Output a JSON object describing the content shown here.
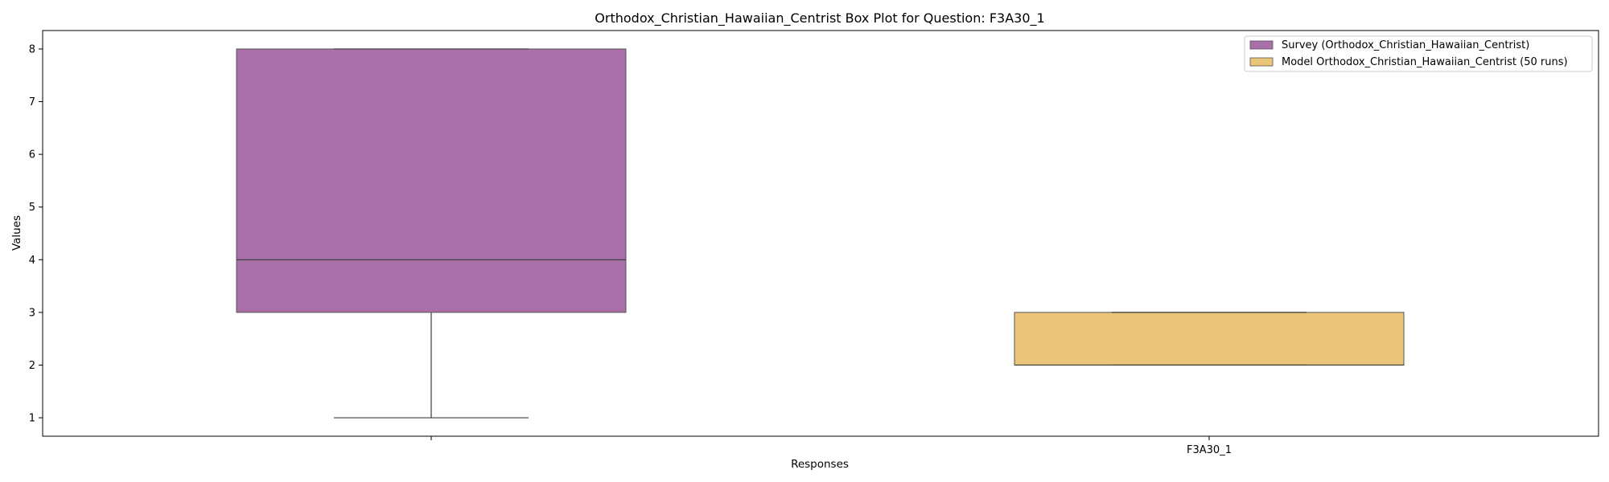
{
  "chart_data": {
    "type": "box",
    "title": "Orthodox_Christian_Hawaiian_Centrist Box Plot for Question: F3A30_1",
    "xlabel": "Responses",
    "ylabel": "Values",
    "ylim": [
      0.65,
      8.35
    ],
    "yticks": [
      1,
      2,
      3,
      4,
      5,
      6,
      7,
      8
    ],
    "xtick_labels": [
      "",
      "F3A30_1"
    ],
    "grid": false,
    "legend_placement": "top-right",
    "series": [
      {
        "name": "Survey (Orthodox_Christian_Hawaiian_Centrist)",
        "color": "#a86fa9",
        "stats": {
          "whislo": 1,
          "q1": 3,
          "med": 4,
          "q3": 8,
          "whishi": 8
        }
      },
      {
        "name": "Model Orthodox_Christian_Hawaiian_Centrist (50 runs)",
        "color": "#eac478",
        "stats": {
          "whislo": 2,
          "q1": 2,
          "med": 2,
          "q3": 3,
          "whishi": 3
        }
      }
    ]
  }
}
